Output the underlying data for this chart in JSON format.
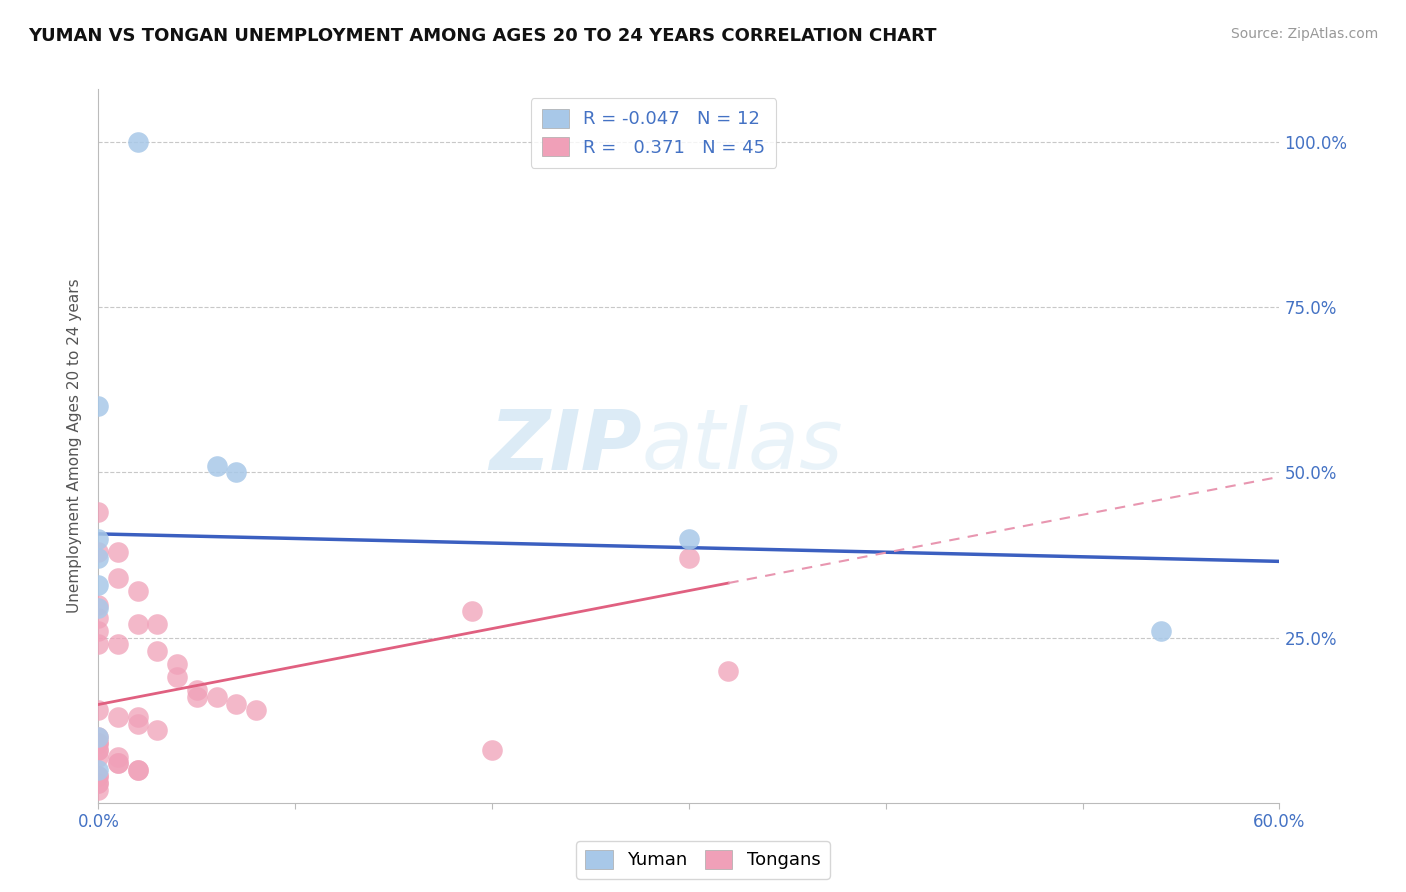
{
  "title": "YUMAN VS TONGAN UNEMPLOYMENT AMONG AGES 20 TO 24 YEARS CORRELATION CHART",
  "source": "Source: ZipAtlas.com",
  "ylabel": "Unemployment Among Ages 20 to 24 years",
  "xlim": [
    0.0,
    0.6
  ],
  "ylim": [
    0.0,
    1.08
  ],
  "ytick_positions": [
    0.25,
    0.5,
    0.75,
    1.0
  ],
  "ytick_labels": [
    "25.0%",
    "50.0%",
    "75.0%",
    "100.0%"
  ],
  "yuman_R": -0.047,
  "yuman_N": 12,
  "tongan_R": 0.371,
  "tongan_N": 45,
  "yuman_color": "#a8c8e8",
  "tongan_color": "#f0a0b8",
  "yuman_line_color": "#3b5fc0",
  "tongan_line_solid_color": "#e06080",
  "tongan_line_dash_color": "#e896b0",
  "grid_color": "#c8c8c8",
  "background_color": "#ffffff",
  "watermark_zip": "ZIP",
  "watermark_atlas": "atlas",
  "yuman_points": [
    [
      0.02,
      1.0
    ],
    [
      0.0,
      0.6
    ],
    [
      0.0,
      0.37
    ],
    [
      0.06,
      0.51
    ],
    [
      0.07,
      0.5
    ],
    [
      0.3,
      0.4
    ],
    [
      0.0,
      0.4
    ],
    [
      0.0,
      0.33
    ],
    [
      0.0,
      0.295
    ],
    [
      0.0,
      0.1
    ],
    [
      0.0,
      0.05
    ],
    [
      0.54,
      0.26
    ]
  ],
  "tongan_points": [
    [
      0.0,
      0.44
    ],
    [
      0.0,
      0.38
    ],
    [
      0.01,
      0.38
    ],
    [
      0.01,
      0.34
    ],
    [
      0.02,
      0.32
    ],
    [
      0.0,
      0.3
    ],
    [
      0.0,
      0.28
    ],
    [
      0.02,
      0.27
    ],
    [
      0.03,
      0.27
    ],
    [
      0.0,
      0.26
    ],
    [
      0.0,
      0.24
    ],
    [
      0.01,
      0.24
    ],
    [
      0.03,
      0.23
    ],
    [
      0.04,
      0.21
    ],
    [
      0.04,
      0.19
    ],
    [
      0.05,
      0.17
    ],
    [
      0.05,
      0.16
    ],
    [
      0.06,
      0.16
    ],
    [
      0.07,
      0.15
    ],
    [
      0.08,
      0.14
    ],
    [
      0.0,
      0.14
    ],
    [
      0.01,
      0.13
    ],
    [
      0.02,
      0.13
    ],
    [
      0.02,
      0.12
    ],
    [
      0.03,
      0.11
    ],
    [
      0.0,
      0.1
    ],
    [
      0.0,
      0.09
    ],
    [
      0.0,
      0.09
    ],
    [
      0.0,
      0.08
    ],
    [
      0.0,
      0.08
    ],
    [
      0.0,
      0.07
    ],
    [
      0.01,
      0.07
    ],
    [
      0.01,
      0.06
    ],
    [
      0.01,
      0.06
    ],
    [
      0.02,
      0.05
    ],
    [
      0.02,
      0.05
    ],
    [
      0.0,
      0.04
    ],
    [
      0.0,
      0.04
    ],
    [
      0.0,
      0.03
    ],
    [
      0.0,
      0.03
    ],
    [
      0.0,
      0.02
    ],
    [
      0.19,
      0.29
    ],
    [
      0.2,
      0.08
    ],
    [
      0.3,
      0.37
    ],
    [
      0.32,
      0.2
    ]
  ]
}
